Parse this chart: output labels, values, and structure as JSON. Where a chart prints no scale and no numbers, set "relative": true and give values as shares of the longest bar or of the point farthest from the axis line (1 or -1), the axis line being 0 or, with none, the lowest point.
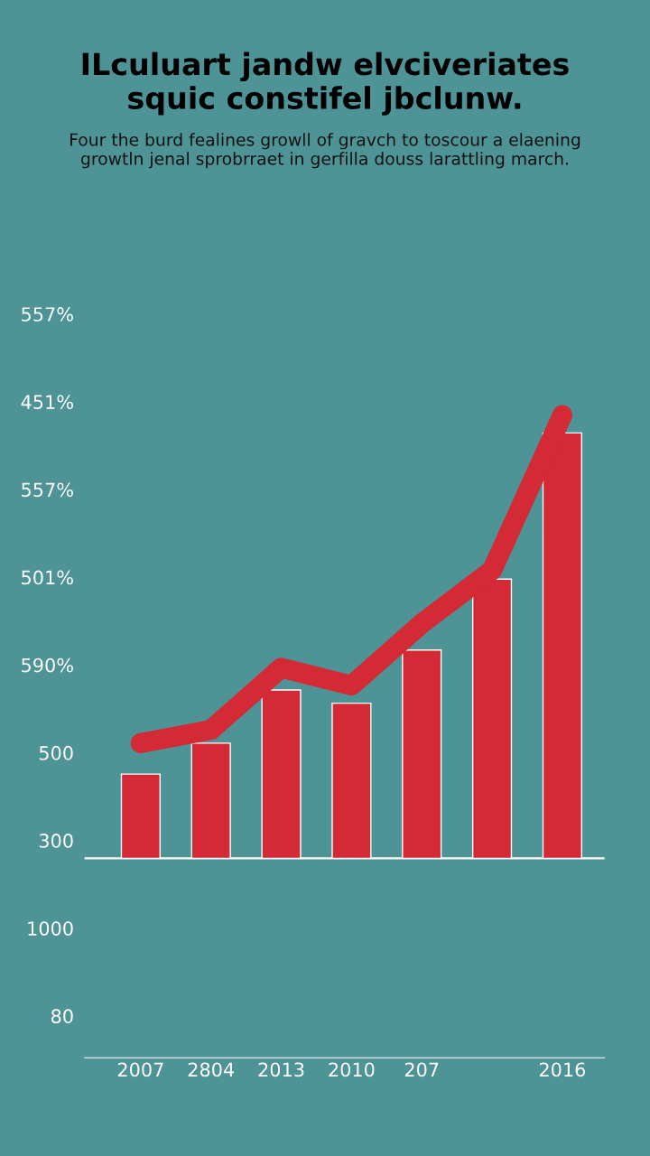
{
  "chart_data": {
    "type": "bar",
    "title": "ILculuart jandw elvciveriates\nsquic constifel jbclunw.",
    "subtitle": "Four the burd fealines growll of gravch to toscour a elaening\ngrowtln jenal sprobrraet in gerfilla douss larattling march.",
    "categories": [
      "2007",
      "2804",
      "2013",
      "2010",
      "207",
      null,
      "2016"
    ],
    "relative": true,
    "series": [
      {
        "color": "#d42a35",
        "values": [
          0.19,
          0.26,
          0.38,
          0.35,
          0.47,
          0.63,
          0.96
        ]
      },
      {
        "type": "line",
        "color": "#d42a35",
        "values": [
          0.26,
          0.29,
          0.43,
          0.39,
          0.53,
          0.65,
          1.0
        ]
      }
    ],
    "annotations": [
      "557%",
      "451%",
      "557%",
      "501%",
      "590%",
      "500",
      "300",
      "1000",
      "80"
    ]
  }
}
